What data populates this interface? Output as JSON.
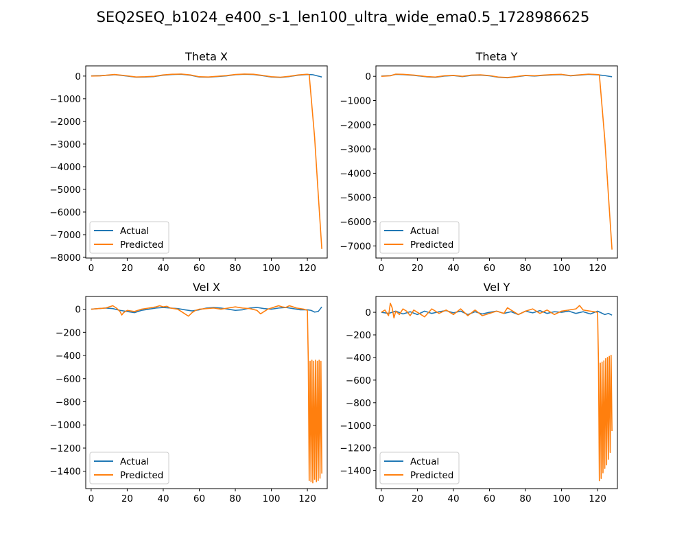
{
  "figure": {
    "title": "SEQ2SEQ_b1024_e400_s-1_len100_ultra_wide_ema0.5_1728986625"
  },
  "colors": {
    "actual": "#1f77b4",
    "predicted": "#ff7f0e"
  },
  "chart_data": [
    {
      "type": "line",
      "title": "Theta X",
      "xlim": [
        -3,
        131
      ],
      "ylim": [
        -8030,
        450
      ],
      "xticks": [
        0,
        20,
        40,
        60,
        80,
        100,
        120
      ],
      "yticks": [
        0,
        -1000,
        -2000,
        -3000,
        -4000,
        -5000,
        -6000,
        -7000,
        -8000
      ],
      "legend": {
        "position": "lower-left",
        "entries": [
          "Actual",
          "Predicted"
        ]
      },
      "series": [
        {
          "name": "Actual",
          "color": "#1f77b4",
          "x": [
            0,
            5,
            10,
            13,
            18,
            25,
            30,
            35,
            40,
            45,
            50,
            55,
            60,
            65,
            70,
            75,
            80,
            85,
            90,
            95,
            100,
            105,
            110,
            115,
            120,
            123,
            126,
            128
          ],
          "y": [
            10,
            20,
            40,
            60,
            20,
            -50,
            -40,
            -20,
            40,
            70,
            80,
            40,
            -40,
            -50,
            -20,
            10,
            60,
            80,
            70,
            20,
            -40,
            -60,
            -20,
            40,
            70,
            60,
            0,
            -40
          ]
        },
        {
          "name": "Predicted",
          "color": "#ff7f0e",
          "x": [
            0,
            5,
            10,
            13,
            18,
            25,
            30,
            35,
            40,
            45,
            50,
            55,
            60,
            65,
            70,
            75,
            80,
            85,
            90,
            95,
            100,
            105,
            110,
            115,
            120,
            121,
            124,
            126,
            128
          ],
          "y": [
            0,
            10,
            50,
            70,
            30,
            -40,
            -30,
            -10,
            50,
            80,
            90,
            50,
            -30,
            -40,
            -10,
            20,
            70,
            90,
            80,
            30,
            -30,
            -50,
            -10,
            50,
            80,
            60,
            -2700,
            -5200,
            -7630
          ]
        }
      ]
    },
    {
      "type": "line",
      "title": "Theta Y",
      "xlim": [
        -3,
        131
      ],
      "ylim": [
        -7500,
        430
      ],
      "xticks": [
        0,
        20,
        40,
        60,
        80,
        100,
        120
      ],
      "yticks": [
        0,
        -1000,
        -2000,
        -3000,
        -4000,
        -5000,
        -6000,
        -7000
      ],
      "legend": {
        "position": "lower-left",
        "entries": [
          "Actual",
          "Predicted"
        ]
      },
      "series": [
        {
          "name": "Actual",
          "color": "#1f77b4",
          "x": [
            0,
            5,
            8,
            12,
            18,
            25,
            30,
            35,
            40,
            45,
            50,
            55,
            60,
            65,
            70,
            75,
            80,
            85,
            90,
            95,
            100,
            105,
            110,
            115,
            120,
            124,
            128
          ],
          "y": [
            10,
            30,
            80,
            70,
            40,
            -20,
            -40,
            10,
            30,
            -10,
            40,
            50,
            20,
            -40,
            -60,
            -20,
            30,
            10,
            40,
            60,
            70,
            20,
            50,
            80,
            60,
            30,
            -20
          ]
        },
        {
          "name": "Predicted",
          "color": "#ff7f0e",
          "x": [
            0,
            5,
            8,
            12,
            18,
            25,
            30,
            35,
            40,
            45,
            50,
            55,
            60,
            65,
            70,
            75,
            80,
            85,
            90,
            95,
            100,
            105,
            110,
            115,
            120,
            121,
            124,
            126,
            128
          ],
          "y": [
            0,
            20,
            90,
            80,
            50,
            -10,
            -30,
            20,
            40,
            0,
            50,
            60,
            30,
            -30,
            -50,
            -10,
            40,
            20,
            50,
            70,
            80,
            30,
            60,
            90,
            70,
            60,
            -2600,
            -4900,
            -7150
          ]
        }
      ]
    },
    {
      "type": "line",
      "title": "Vel X",
      "xlim": [
        -3,
        131
      ],
      "ylim": [
        -1550,
        110
      ],
      "xticks": [
        0,
        20,
        40,
        60,
        80,
        100,
        120
      ],
      "yticks": [
        0,
        -200,
        -400,
        -600,
        -800,
        -1000,
        -1200,
        -1400
      ],
      "legend": {
        "position": "lower-left",
        "entries": [
          "Actual",
          "Predicted"
        ]
      },
      "series": [
        {
          "name": "Actual",
          "color": "#1f77b4",
          "x": [
            0,
            4,
            8,
            12,
            16,
            20,
            24,
            28,
            32,
            36,
            40,
            44,
            48,
            52,
            56,
            60,
            64,
            68,
            72,
            76,
            80,
            84,
            88,
            92,
            96,
            100,
            104,
            108,
            112,
            116,
            120,
            122,
            124,
            126,
            128
          ],
          "y": [
            0,
            5,
            10,
            5,
            -10,
            -20,
            -30,
            -10,
            0,
            10,
            15,
            10,
            5,
            -5,
            -15,
            -5,
            10,
            15,
            10,
            0,
            -10,
            -5,
            10,
            15,
            5,
            0,
            10,
            15,
            5,
            -5,
            -5,
            -10,
            -25,
            -20,
            20
          ]
        },
        {
          "name": "Predicted",
          "color": "#ff7f0e",
          "x": [
            0,
            4,
            8,
            10,
            12,
            14,
            16,
            17,
            18,
            20,
            24,
            28,
            32,
            36,
            38,
            40,
            42,
            44,
            48,
            50,
            52,
            54,
            56,
            58,
            60,
            64,
            68,
            72,
            76,
            80,
            84,
            88,
            92,
            94,
            96,
            98,
            100,
            102,
            104,
            106,
            108,
            110,
            112,
            114,
            116,
            118,
            120,
            120.5,
            121,
            121.5,
            122,
            122.5,
            123,
            123.5,
            124,
            124.5,
            125,
            125.5,
            126,
            126.5,
            127,
            127.5,
            128
          ],
          "y": [
            0,
            5,
            10,
            20,
            30,
            10,
            -20,
            -50,
            -30,
            -10,
            -20,
            0,
            10,
            20,
            30,
            20,
            25,
            10,
            0,
            -20,
            -40,
            -60,
            -30,
            -10,
            0,
            5,
            10,
            0,
            10,
            20,
            10,
            5,
            -10,
            -40,
            -20,
            0,
            10,
            20,
            30,
            20,
            15,
            30,
            20,
            10,
            5,
            0,
            -10,
            -450,
            -1480,
            -450,
            -1490,
            -440,
            -1500,
            -450,
            -1470,
            -440,
            -1490,
            -450,
            -1480,
            -440,
            -1460,
            -450,
            -1420
          ]
        }
      ]
    },
    {
      "type": "line",
      "title": "Vel Y",
      "xlim": [
        -3,
        131
      ],
      "ylim": [
        -1560,
        140
      ],
      "xticks": [
        0,
        20,
        40,
        60,
        80,
        100,
        120
      ],
      "yticks": [
        0,
        -200,
        -400,
        -600,
        -800,
        -1000,
        -1200,
        -1400
      ],
      "legend": {
        "position": "lower-left",
        "entries": [
          "Actual",
          "Predicted"
        ]
      },
      "series": [
        {
          "name": "Actual",
          "color": "#1f77b4",
          "x": [
            0,
            4,
            8,
            12,
            16,
            20,
            24,
            28,
            32,
            36,
            40,
            44,
            48,
            52,
            56,
            60,
            64,
            68,
            72,
            76,
            80,
            84,
            88,
            92,
            96,
            100,
            104,
            108,
            112,
            116,
            120,
            122,
            124,
            126,
            128
          ],
          "y": [
            0,
            -10,
            10,
            -15,
            5,
            -20,
            10,
            -10,
            5,
            15,
            -5,
            10,
            -20,
            5,
            -15,
            0,
            10,
            -10,
            5,
            -20,
            10,
            -5,
            15,
            -10,
            5,
            0,
            10,
            -10,
            5,
            -15,
            10,
            -5,
            -20,
            -10,
            -25
          ]
        },
        {
          "name": "Predicted",
          "color": "#ff7f0e",
          "x": [
            0,
            2,
            4,
            5,
            6,
            7,
            8,
            10,
            12,
            14,
            16,
            18,
            20,
            24,
            28,
            32,
            36,
            40,
            44,
            48,
            52,
            56,
            60,
            64,
            68,
            70,
            72,
            76,
            80,
            84,
            88,
            92,
            96,
            100,
            104,
            108,
            110,
            112,
            116,
            120,
            120.5,
            121,
            121.5,
            122,
            122.5,
            123,
            123.5,
            124,
            124.5,
            125,
            125.5,
            126,
            126.5,
            127,
            127.5,
            128
          ],
          "y": [
            0,
            20,
            -30,
            80,
            40,
            -50,
            10,
            -20,
            30,
            10,
            -30,
            20,
            0,
            -40,
            30,
            -10,
            20,
            -20,
            30,
            -30,
            20,
            -30,
            -10,
            10,
            -10,
            40,
            20,
            -20,
            10,
            30,
            -10,
            20,
            -20,
            10,
            20,
            30,
            60,
            20,
            10,
            0,
            -440,
            -1490,
            -450,
            -1470,
            -440,
            -1420,
            -430,
            -1380,
            -410,
            -1350,
            -400,
            -1300,
            -390,
            -1240,
            -380,
            -1050
          ]
        }
      ]
    }
  ]
}
